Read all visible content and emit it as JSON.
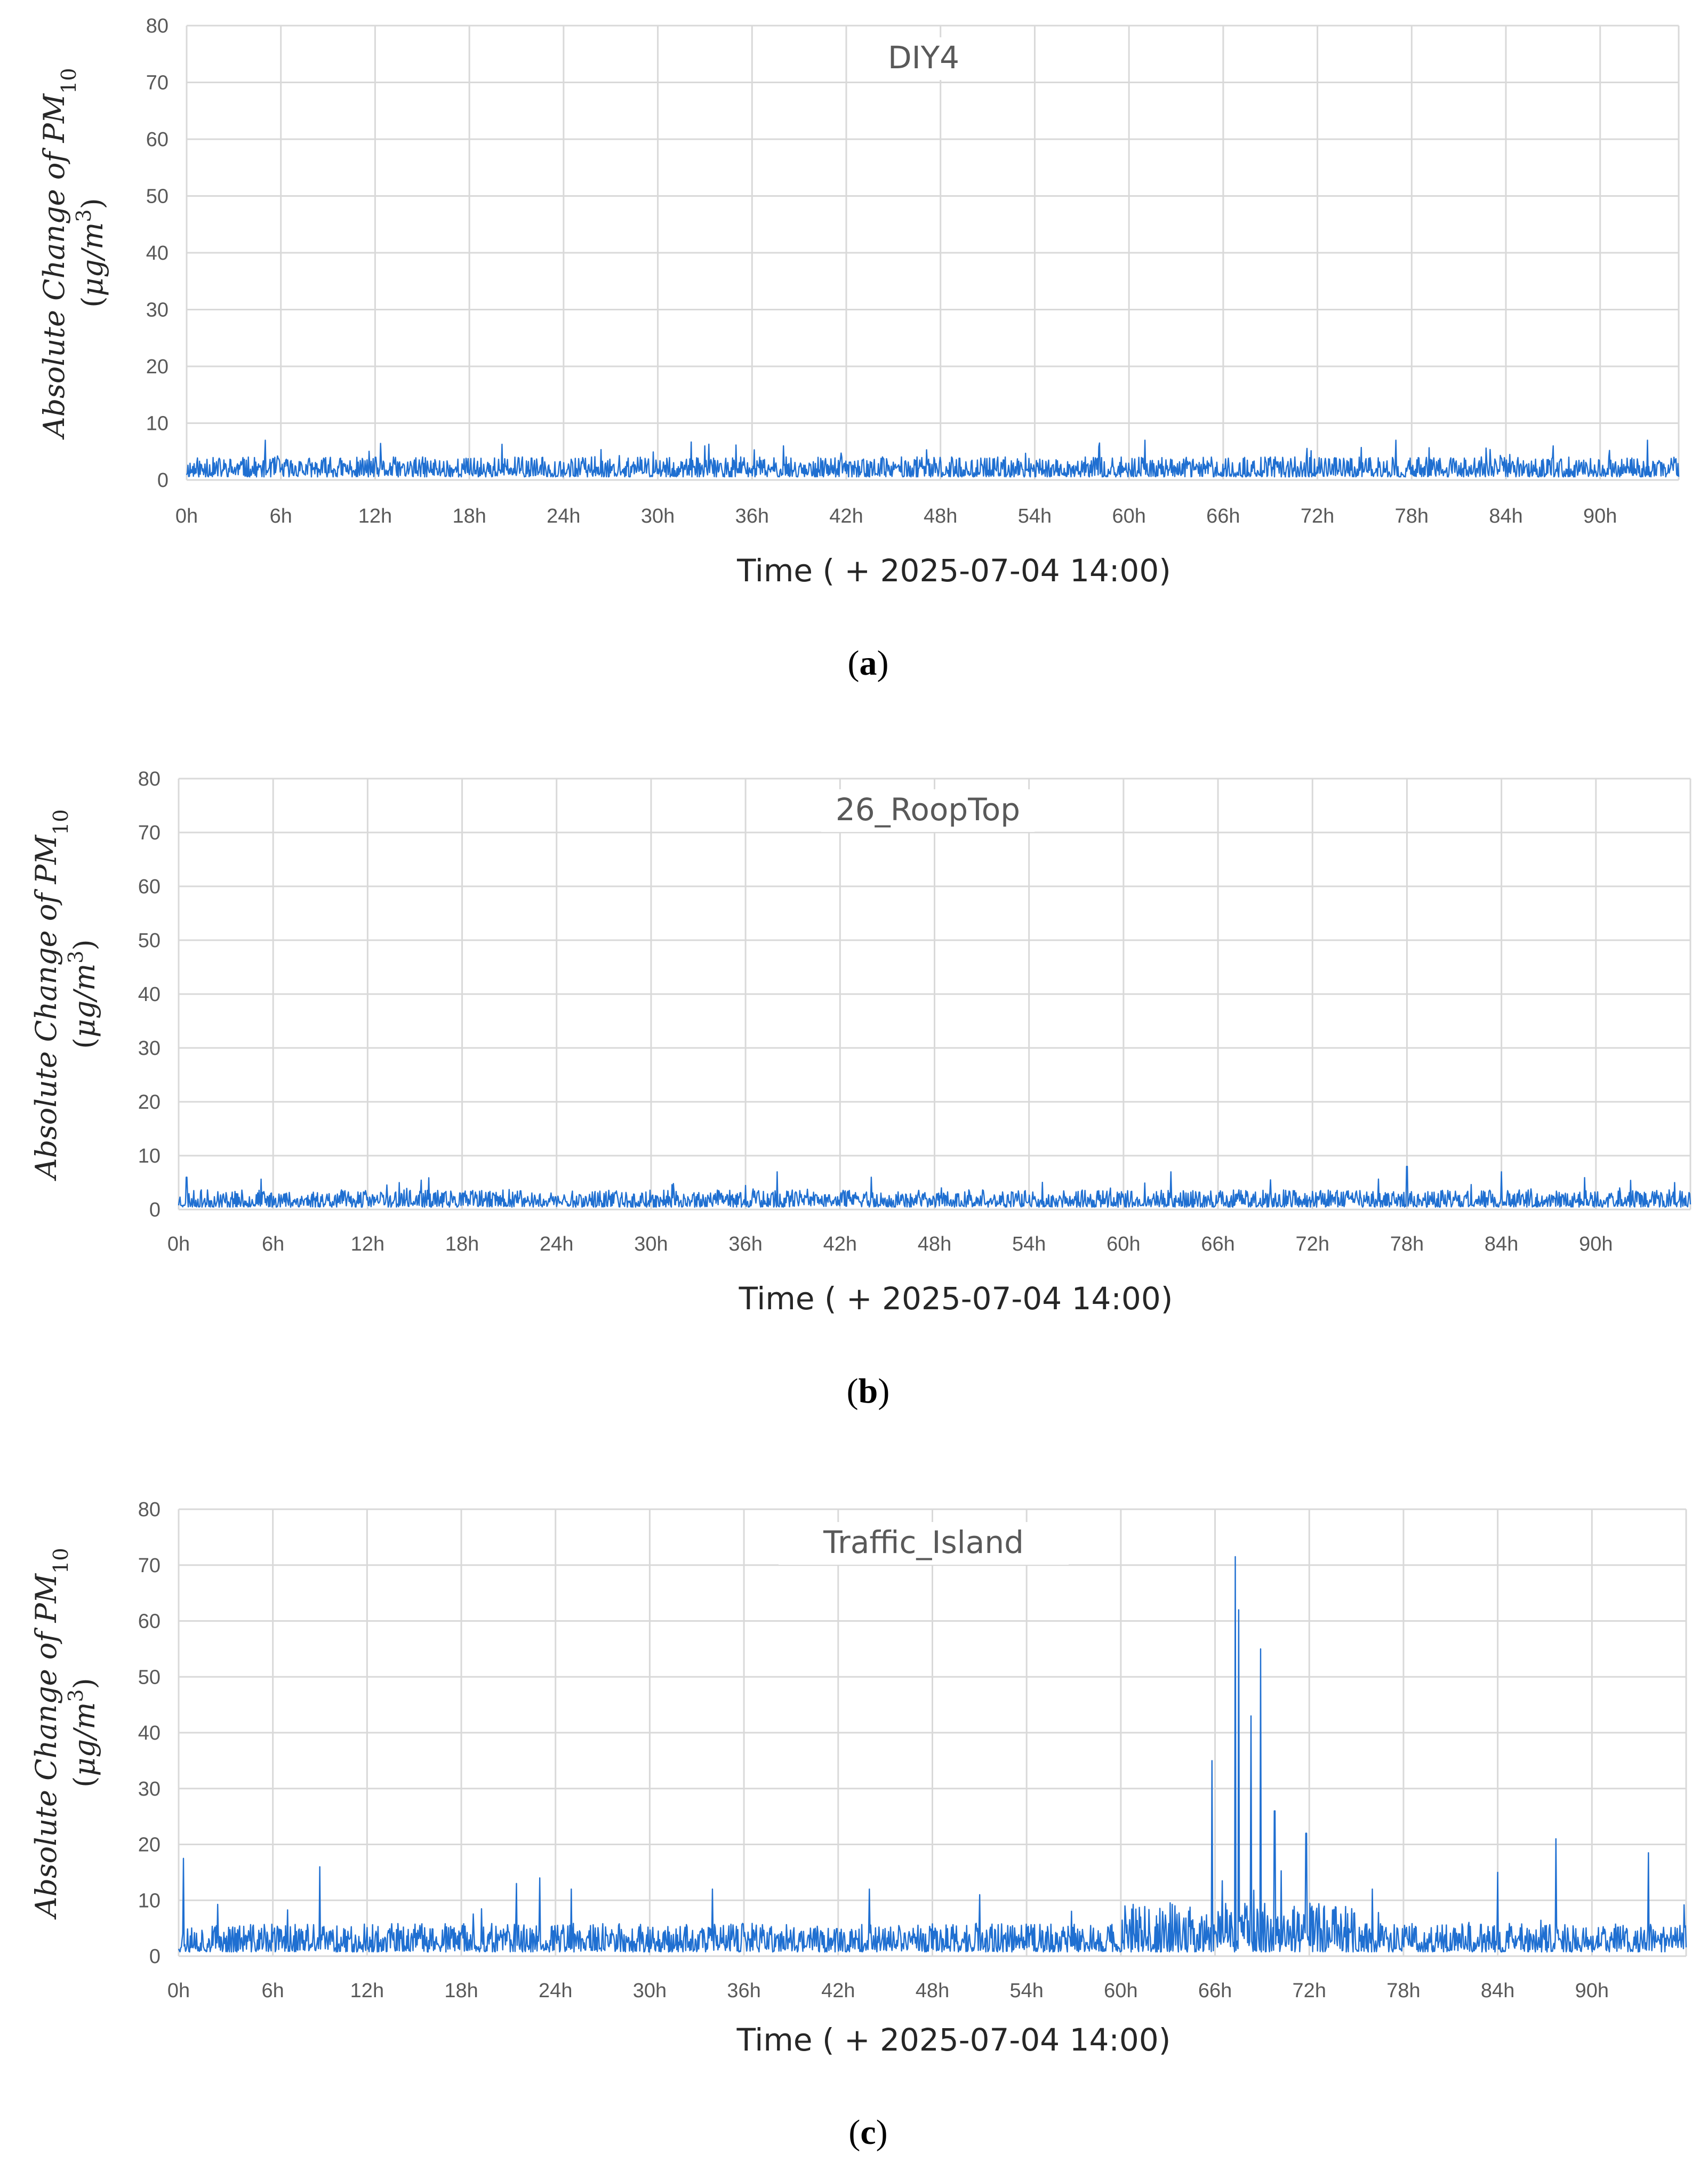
{
  "chart_data": [
    {
      "type": "line",
      "panel_label": "a",
      "title": "DIY4",
      "xlabel": "Time ( + 2025-07-04 14:00)",
      "ylabel": "Absolute Change of PM10 (μg/m3)",
      "ylabel_parts": {
        "main": "Absolute Change of ",
        "pm": "PM",
        "sub": "10",
        "unit_open": "(",
        "mu": "μg/m",
        "sup": "3",
        "unit_close": ")"
      },
      "x_tick_labels": [
        "0h",
        "6h",
        "12h",
        "18h",
        "24h",
        "30h",
        "36h",
        "42h",
        "48h",
        "54h",
        "60h",
        "66h",
        "72h",
        "78h",
        "84h",
        "90h"
      ],
      "x_ticks": [
        0,
        6,
        12,
        18,
        24,
        30,
        36,
        42,
        48,
        54,
        60,
        66,
        72,
        78,
        84,
        90
      ],
      "y_tick_labels": [
        "0",
        "10",
        "20",
        "30",
        "40",
        "50",
        "60",
        "70",
        "80"
      ],
      "xlim": [
        0,
        95
      ],
      "ylim": [
        0,
        80
      ],
      "grid": true,
      "series": [
        {
          "color": "#1f6fd1",
          "baseline": 1.8,
          "amplitude": 2.2,
          "seed": 11,
          "peaks": [
            [
              5,
              7
            ],
            [
              33,
              6
            ],
            [
              38,
              6
            ],
            [
              61,
              7
            ],
            [
              77,
              7
            ],
            [
              87,
              6
            ],
            [
              93,
              7
            ]
          ]
        }
      ]
    },
    {
      "type": "line",
      "panel_label": "b",
      "title": "26_RoopTop",
      "xlabel": "Time ( + 2025-07-04 14:00)",
      "ylabel": "Absolute Change of PM10 (μg/m3)",
      "ylabel_parts": {
        "main": "Absolute Change of ",
        "pm": "PM",
        "sub": "10",
        "unit_open": "(",
        "mu": "μg/m",
        "sup": "3",
        "unit_close": ")"
      },
      "x_tick_labels": [
        "0h",
        "6h",
        "12h",
        "18h",
        "24h",
        "30h",
        "36h",
        "42h",
        "48h",
        "54h",
        "60h",
        "66h",
        "72h",
        "78h",
        "84h",
        "90h"
      ],
      "x_ticks": [
        0,
        6,
        12,
        18,
        24,
        30,
        36,
        42,
        48,
        54,
        60,
        66,
        72,
        78,
        84,
        90
      ],
      "y_tick_labels": [
        "0",
        "10",
        "20",
        "30",
        "40",
        "50",
        "60",
        "70",
        "80"
      ],
      "xlim": [
        0,
        96
      ],
      "ylim": [
        0,
        80
      ],
      "grid": true,
      "series": [
        {
          "color": "#1f6fd1",
          "baseline": 1.5,
          "amplitude": 2.0,
          "seed": 23,
          "peaks": [
            [
              0.5,
              6
            ],
            [
              14,
              5
            ],
            [
              38,
              7
            ],
            [
              44,
              6
            ],
            [
              63,
              7
            ],
            [
              78,
              8
            ],
            [
              84,
              7
            ],
            [
              95,
              5
            ]
          ]
        }
      ]
    },
    {
      "type": "line",
      "panel_label": "c",
      "title": "Traffic_Island",
      "xlabel": "Time ( + 2025-07-04 14:00)",
      "ylabel": "Absolute Change of PM10 (μg/m3)",
      "ylabel_parts": {
        "main": "Absolute Change of ",
        "pm": "PM",
        "sub": "10",
        "unit_open": "(",
        "mu": "μg/m",
        "sup": "3",
        "unit_close": ")"
      },
      "x_tick_labels": [
        "0h",
        "6h",
        "12h",
        "18h",
        "24h",
        "30h",
        "36h",
        "42h",
        "48h",
        "54h",
        "60h",
        "66h",
        "72h",
        "78h",
        "84h",
        "90h"
      ],
      "x_ticks": [
        0,
        6,
        12,
        18,
        24,
        30,
        36,
        42,
        48,
        54,
        60,
        66,
        72,
        78,
        84,
        90
      ],
      "y_tick_labels": [
        "0",
        "10",
        "20",
        "30",
        "40",
        "50",
        "60",
        "70",
        "80"
      ],
      "xlim": [
        0,
        96
      ],
      "ylim": [
        0,
        80
      ],
      "grid": true,
      "series": [
        {
          "color": "#1f6fd1",
          "baseline": 2.5,
          "amplitude": 3.2,
          "seed": 37,
          "peaks": [
            [
              0.3,
              17.5
            ],
            [
              9,
              16
            ],
            [
              21.5,
              13
            ],
            [
              23,
              14
            ],
            [
              25,
              12
            ],
            [
              34,
              12
            ],
            [
              44,
              12
            ],
            [
              51,
              11
            ],
            [
              65.8,
              35
            ],
            [
              67.3,
              71.5
            ],
            [
              67.5,
              62
            ],
            [
              68.3,
              43
            ],
            [
              68.9,
              55
            ],
            [
              69.8,
              26
            ],
            [
              71.8,
              22
            ],
            [
              76,
              12
            ],
            [
              84,
              15
            ],
            [
              87.7,
              21
            ],
            [
              93.6,
              18.5
            ]
          ],
          "burst": [
            [
              60,
              75,
              5.5
            ]
          ]
        }
      ]
    }
  ]
}
